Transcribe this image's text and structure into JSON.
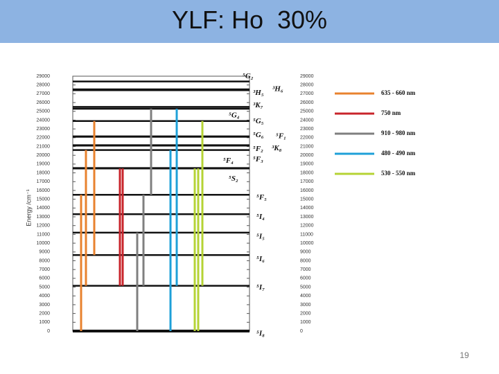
{
  "slide": {
    "title": "YLF: Ho  30%",
    "page_number": "19"
  },
  "chart_data": {
    "type": "energy-level",
    "ylabel": "Energy /cm⁻¹",
    "ylim": [
      0,
      29000
    ],
    "yticks": [
      0,
      1000,
      2000,
      3000,
      4000,
      5000,
      6000,
      7000,
      8000,
      9000,
      10000,
      11000,
      12000,
      13000,
      14000,
      15000,
      16000,
      17000,
      18000,
      19000,
      20000,
      21000,
      22000,
      23000,
      24000,
      25000,
      26000,
      27000,
      28000,
      29000
    ],
    "levels": [
      {
        "label": "⁵I₈",
        "value": 0
      },
      {
        "label": "⁵I₇",
        "value": 5150
      },
      {
        "label": "⁵I₆",
        "value": 8650
      },
      {
        "label": "⁵I₅",
        "value": 11200
      },
      {
        "label": "⁵I₄",
        "value": 13300
      },
      {
        "label": "⁵F₅",
        "value": 15500
      },
      {
        "label": "⁵S₂",
        "value": 18500
      },
      {
        "label": "⁵F₄",
        "value": 18550
      },
      {
        "label": "⁵F₃",
        "value": 20600
      },
      {
        "label": "⁵F₂",
        "value": 21100
      },
      {
        "label": "³K₈",
        "value": 21150
      },
      {
        "label": "⁵G₆",
        "value": 22100
      },
      {
        "label": "⁵F₁",
        "value": 22150
      },
      {
        "label": "⁵G₅",
        "value": 23900
      },
      {
        "label": "⁵G₄",
        "value": 25300
      },
      {
        "label": "³K₇",
        "value": 25500
      },
      {
        "label": "³H₅",
        "value": 27400
      },
      {
        "label": "³H₆",
        "value": 27500
      },
      {
        "label": "⁵G₂",
        "value": 28400
      }
    ],
    "series": [
      {
        "name": "635 - 660 nm",
        "color": "#e8822e",
        "transitions": [
          [
            0,
            15500
          ],
          [
            5150,
            20600
          ],
          [
            8650,
            23900
          ]
        ]
      },
      {
        "name": "750 nm",
        "color": "#c8242b",
        "transitions": [
          [
            5150,
            18500
          ],
          [
            5150,
            18500
          ]
        ]
      },
      {
        "name": "910 - 980 nm",
        "color": "#7f7f7f",
        "transitions": [
          [
            0,
            11200
          ],
          [
            5150,
            15500
          ],
          [
            15500,
            25300
          ]
        ]
      },
      {
        "name": "480 - 490 nm",
        "color": "#1ea0d8",
        "transitions": [
          [
            0,
            20600
          ],
          [
            5150,
            25300
          ]
        ]
      },
      {
        "name": "530 - 550 nm",
        "color": "#b5d334",
        "transitions": [
          [
            0,
            18500
          ],
          [
            0,
            18500
          ],
          [
            5150,
            23900
          ]
        ]
      }
    ]
  }
}
